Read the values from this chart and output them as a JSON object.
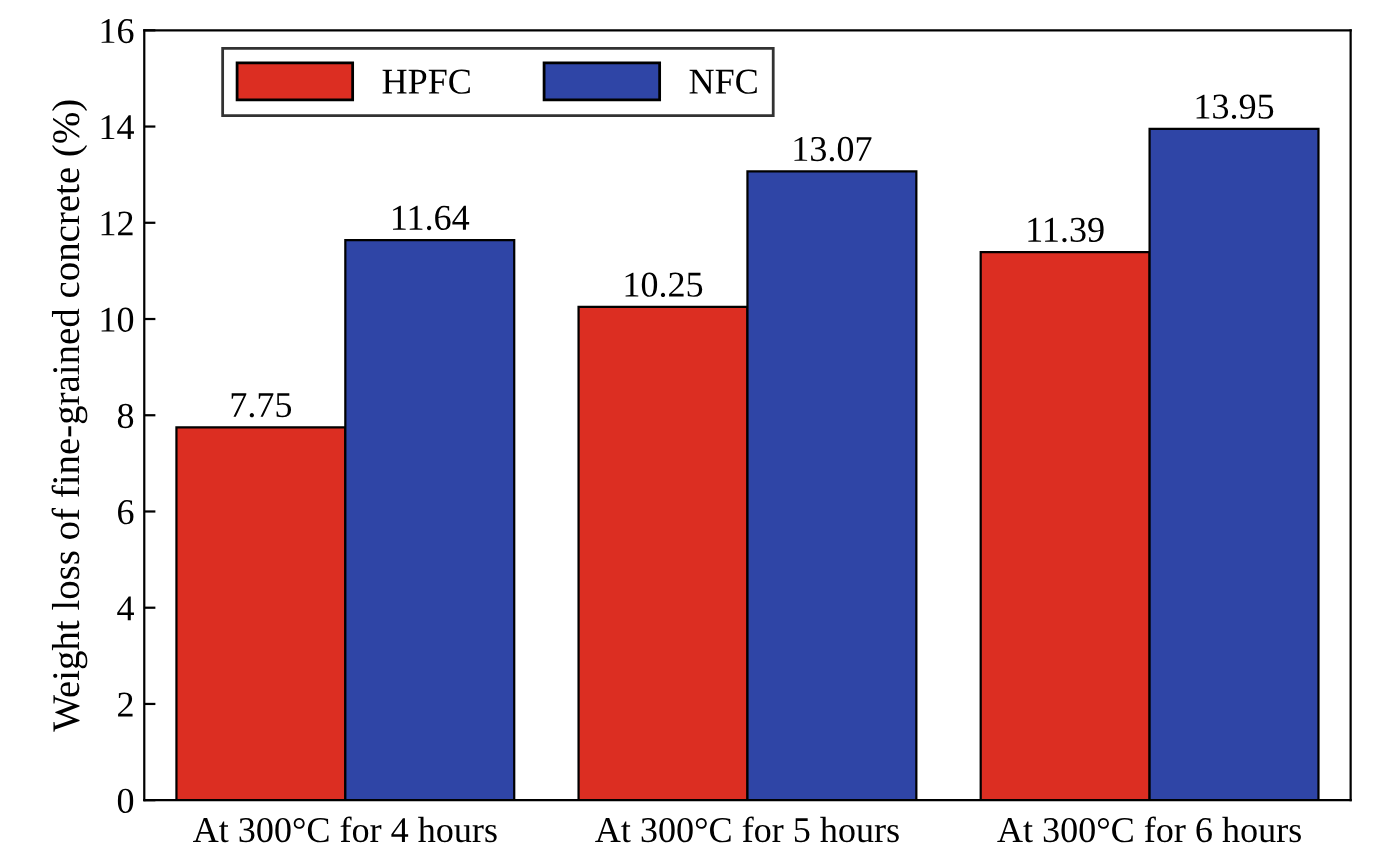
{
  "chart_data": {
    "type": "bar",
    "ylabel": "Weight loss of fine-grained concrete (%)",
    "categories": [
      "At 300°C for 4 hours",
      "At 300°C for 5 hours",
      "At 300°C for 6 hours"
    ],
    "series": [
      {
        "name": "HPFC",
        "color": "#dc2e22",
        "values": [
          7.75,
          10.25,
          11.39
        ]
      },
      {
        "name": "NFC",
        "color": "#2f45a6",
        "values": [
          11.64,
          13.07,
          13.95
        ]
      }
    ],
    "ylim": [
      0,
      16
    ],
    "yticks": [
      0,
      2,
      4,
      6,
      8,
      10,
      12,
      14,
      16
    ],
    "data_labels": true,
    "legend": "top left",
    "grid": false
  }
}
